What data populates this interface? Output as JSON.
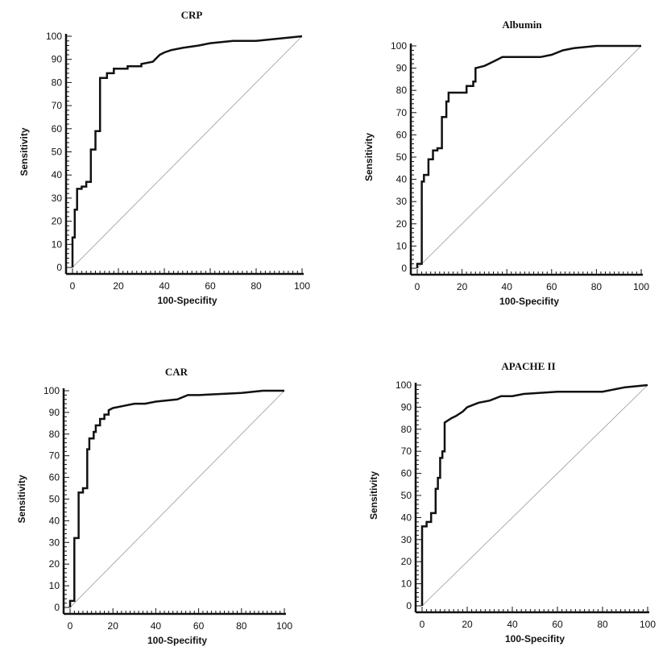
{
  "chart_data": [
    {
      "type": "line",
      "title": "CRP",
      "xlabel": "100-Specifity",
      "ylabel": "Sensitivity",
      "xlim": [
        0,
        100
      ],
      "ylim": [
        0,
        100
      ],
      "x_ticks": [
        0,
        20,
        40,
        60,
        80,
        100
      ],
      "y_ticks": [
        0,
        10,
        20,
        30,
        40,
        50,
        60,
        70,
        80,
        90,
        100
      ],
      "grid": false,
      "reference_line": [
        [
          0,
          0
        ],
        [
          100,
          100
        ]
      ],
      "series": [
        {
          "x": [
            0,
            0,
            1,
            1,
            2,
            2,
            4,
            4,
            6,
            6,
            8,
            8,
            10,
            10,
            12,
            12,
            15,
            15,
            18,
            18,
            24,
            24,
            30,
            30,
            35,
            36,
            38,
            40,
            43,
            48,
            55,
            60,
            70,
            80,
            90,
            100
          ],
          "y": [
            0,
            13,
            13,
            25,
            25,
            34,
            34,
            35,
            35,
            37,
            37,
            51,
            51,
            59,
            59,
            82,
            82,
            84,
            84,
            86,
            86,
            87,
            87,
            88,
            89,
            90,
            92,
            93,
            94,
            95,
            96,
            97,
            98,
            98,
            99,
            100
          ]
        }
      ]
    },
    {
      "type": "line",
      "title": "Albumin",
      "xlabel": "100-Specifity",
      "ylabel": "Sensitivity",
      "xlim": [
        0,
        100
      ],
      "ylim": [
        0,
        100
      ],
      "x_ticks": [
        0,
        20,
        40,
        60,
        80,
        100
      ],
      "y_ticks": [
        0,
        10,
        20,
        30,
        40,
        50,
        60,
        70,
        80,
        90,
        100
      ],
      "grid": false,
      "reference_line": [
        [
          0,
          0
        ],
        [
          100,
          100
        ]
      ],
      "series": [
        {
          "x": [
            0,
            0,
            2,
            2,
            3,
            3,
            5,
            5,
            7,
            7,
            9,
            9,
            11,
            11,
            13,
            13,
            14,
            14,
            22,
            22,
            25,
            25,
            26,
            26,
            30,
            32,
            36,
            38,
            55,
            60,
            65,
            70,
            80,
            100
          ],
          "y": [
            0,
            2,
            2,
            39,
            39,
            42,
            42,
            49,
            49,
            53,
            53,
            54,
            54,
            68,
            68,
            75,
            75,
            79,
            79,
            82,
            82,
            84,
            84,
            90,
            91,
            92,
            94,
            95,
            95,
            96,
            98,
            99,
            100,
            100
          ]
        }
      ]
    },
    {
      "type": "line",
      "title": "CAR",
      "xlabel": "100-Specifity",
      "ylabel": "Sensitivity",
      "xlim": [
        0,
        100
      ],
      "ylim": [
        0,
        100
      ],
      "x_ticks": [
        0,
        20,
        40,
        60,
        80,
        100
      ],
      "y_ticks": [
        0,
        10,
        20,
        30,
        40,
        50,
        60,
        70,
        80,
        90,
        100
      ],
      "grid": false,
      "reference_line": [
        [
          0,
          0
        ],
        [
          100,
          100
        ]
      ],
      "series": [
        {
          "x": [
            0,
            0,
            2,
            2,
            4,
            4,
            6,
            6,
            8,
            8,
            9,
            9,
            11,
            11,
            12,
            12,
            14,
            14,
            16,
            16,
            18,
            18,
            20,
            25,
            30,
            35,
            40,
            50,
            55,
            60,
            80,
            90,
            100
          ],
          "y": [
            0,
            3,
            3,
            32,
            32,
            53,
            53,
            55,
            55,
            73,
            73,
            78,
            78,
            81,
            81,
            84,
            84,
            87,
            87,
            89,
            89,
            91,
            92,
            93,
            94,
            94,
            95,
            96,
            98,
            98,
            99,
            100,
            100
          ]
        }
      ]
    },
    {
      "type": "line",
      "title": "APACHE II",
      "xlabel": "100-Specifity",
      "ylabel": "Sensitivity",
      "xlim": [
        0,
        100
      ],
      "ylim": [
        0,
        100
      ],
      "x_ticks": [
        0,
        20,
        40,
        60,
        80,
        100
      ],
      "y_ticks": [
        0,
        10,
        20,
        30,
        40,
        50,
        60,
        70,
        80,
        90,
        100
      ],
      "grid": false,
      "reference_line": [
        [
          0,
          0
        ],
        [
          100,
          100
        ]
      ],
      "series": [
        {
          "x": [
            0,
            0,
            2,
            2,
            4,
            4,
            6,
            6,
            7,
            7,
            8,
            8,
            9,
            9,
            10,
            10,
            13,
            15,
            18,
            20,
            25,
            30,
            35,
            40,
            45,
            60,
            80,
            90,
            100
          ],
          "y": [
            0,
            36,
            36,
            38,
            38,
            42,
            42,
            53,
            53,
            58,
            58,
            67,
            67,
            70,
            70,
            83,
            85,
            86,
            88,
            90,
            92,
            93,
            95,
            95,
            96,
            97,
            97,
            99,
            100
          ]
        }
      ]
    }
  ]
}
